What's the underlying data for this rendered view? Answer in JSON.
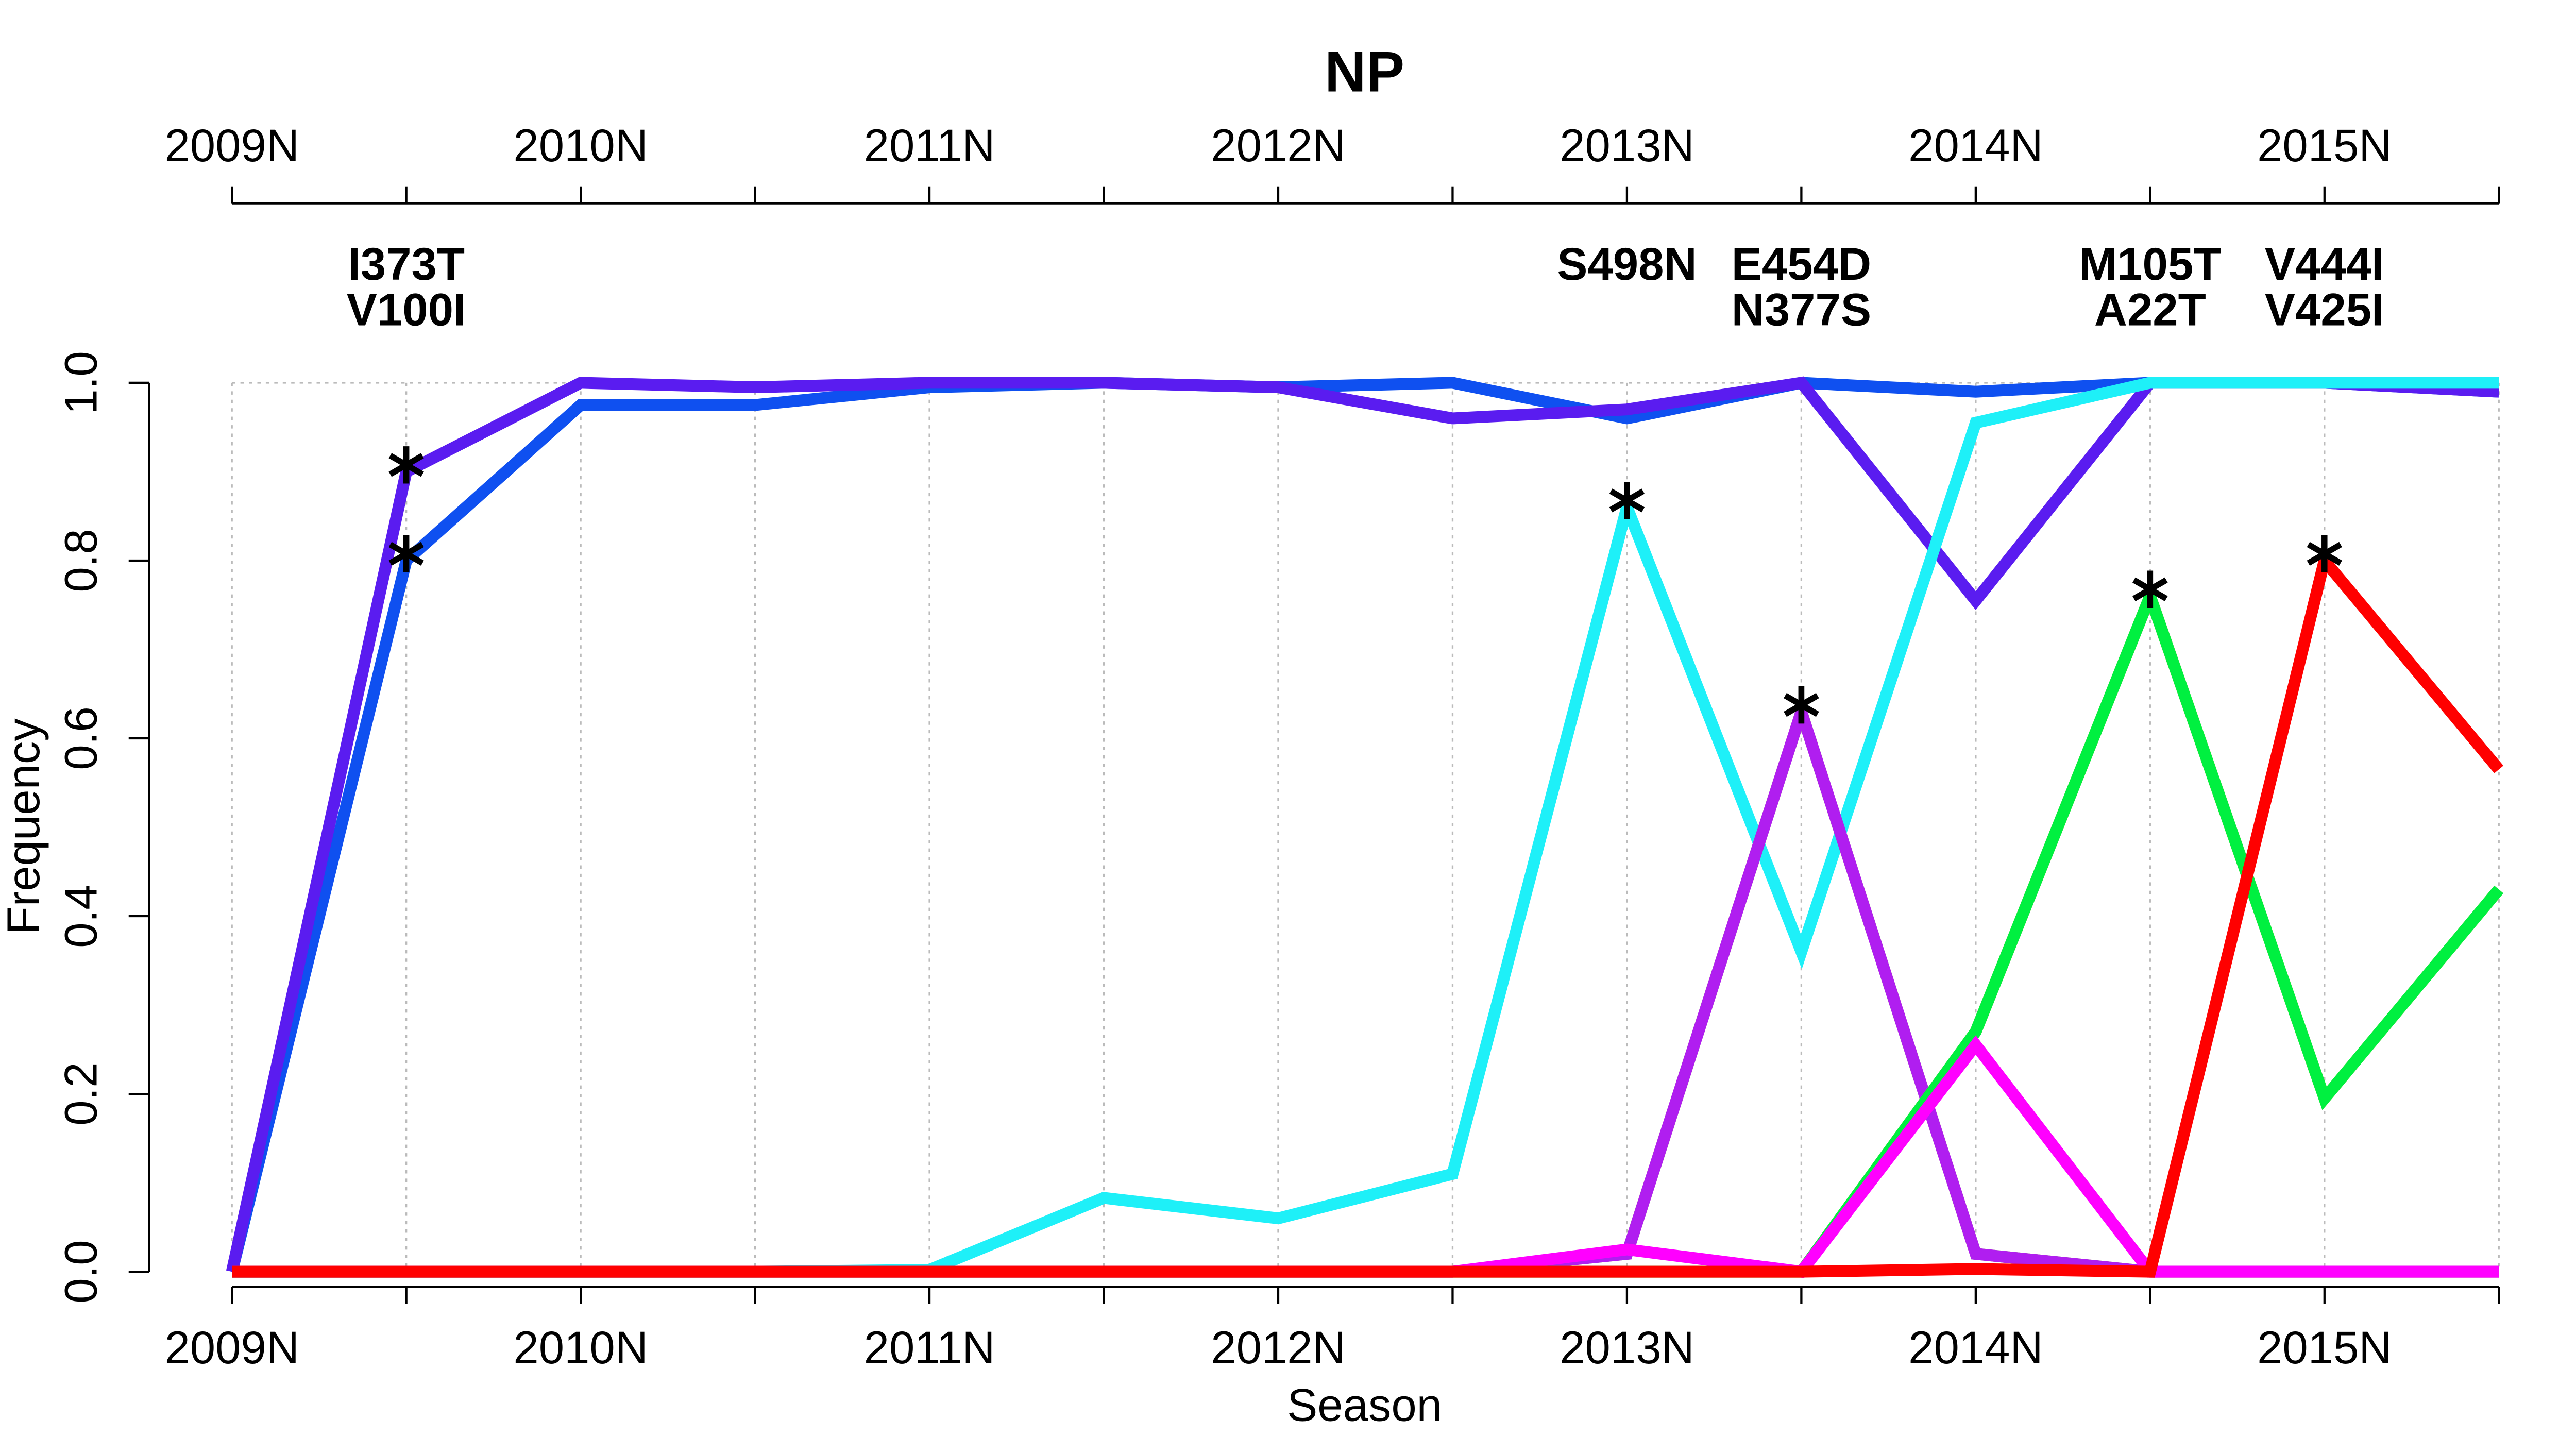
{
  "chart_data": {
    "type": "line",
    "title": "NP",
    "x_label": "Season",
    "y_label": "Frequency",
    "categories": [
      "2009N",
      null,
      "2010N",
      null,
      "2011N",
      null,
      "2012N",
      null,
      "2013N",
      null,
      "2014N",
      null,
      "2015N",
      null
    ],
    "ylim": [
      0,
      1
    ],
    "yticks": [
      {
        "value": 0,
        "label": "0.0"
      },
      0.2,
      0.4,
      0.6,
      0.8,
      {
        "value": 1,
        "label": "1.0"
      }
    ],
    "grid": true,
    "series": [
      {
        "name": "V100I",
        "color": "#0f50f0",
        "emerged": 1,
        "star": true,
        "values": [
          0,
          0.8,
          0.975,
          0.975,
          0.995,
          1.0,
          0.995,
          1.0,
          0.96,
          1.0,
          0.99,
          1.0,
          1.0,
          0.99
        ]
      },
      {
        "name": "I373T",
        "color": "#5a1cf0",
        "emerged": 1,
        "star": true,
        "values": [
          0,
          0.9,
          1.0,
          0.995,
          1.0,
          1.0,
          0.995,
          0.96,
          0.97,
          1.0,
          0.755,
          1.0,
          1.0,
          0.99
        ]
      },
      {
        "name": "S498N",
        "color": "#1ef0f8",
        "emerged": 8,
        "star": true,
        "values": [
          0,
          0,
          0,
          0,
          0.002,
          0.083,
          0.06,
          0.11,
          0.86,
          0.36,
          0.955,
          1.0,
          1.0,
          1.0
        ]
      },
      {
        "name": "N377S",
        "color": "#80d010",
        "emerged": 9,
        "star": true,
        "values": [
          0,
          0,
          0,
          0,
          0,
          0,
          0,
          0,
          0.02,
          0.63,
          0.02,
          0,
          0,
          0
        ]
      },
      {
        "name": "E454D",
        "color": "#b01ef0",
        "emerged": 9,
        "star": true,
        "values": [
          0,
          0,
          0,
          0,
          0,
          0,
          0,
          0,
          0.02,
          0.63,
          0.02,
          0,
          0,
          0
        ]
      },
      {
        "name": "A22T",
        "color": "#ff8000",
        "emerged": 11,
        "star": true,
        "values": [
          0,
          0,
          0,
          0,
          0,
          0,
          0,
          0,
          0,
          0,
          0.27,
          0.76,
          0.195,
          0.43
        ]
      },
      {
        "name": "M105T",
        "color": "#00f040",
        "emerged": 11,
        "star": true,
        "values": [
          0,
          0,
          0,
          0,
          0,
          0,
          0,
          0,
          0,
          0,
          0.27,
          0.76,
          0.195,
          0.43
        ]
      },
      {
        "name": "V425I",
        "color": "#ff00ff",
        "emerged": 12,
        "star": false,
        "values": [
          0,
          0,
          0,
          0,
          0,
          0,
          0,
          0,
          0.025,
          0,
          0.255,
          0,
          0,
          0
        ]
      },
      {
        "name": "V444I",
        "color": "#ff0000",
        "emerged": 12,
        "star": true,
        "values": [
          0,
          0,
          0,
          0,
          0,
          0,
          0,
          0,
          0,
          0,
          0.003,
          0,
          0.8,
          0.565
        ]
      }
    ]
  }
}
